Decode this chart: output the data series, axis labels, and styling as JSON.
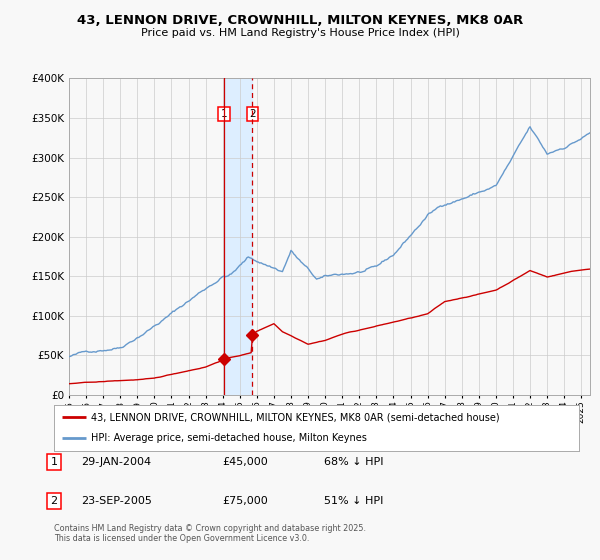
{
  "title1": "43, LENNON DRIVE, CROWNHILL, MILTON KEYNES, MK8 0AR",
  "title2": "Price paid vs. HM Land Registry's House Price Index (HPI)",
  "legend_red": "43, LENNON DRIVE, CROWNHILL, MILTON KEYNES, MK8 0AR (semi-detached house)",
  "legend_blue": "HPI: Average price, semi-detached house, Milton Keynes",
  "sale1_date": "29-JAN-2004",
  "sale1_price": "£45,000",
  "sale1_hpi": "68% ↓ HPI",
  "sale2_date": "23-SEP-2005",
  "sale2_price": "£75,000",
  "sale2_hpi": "51% ↓ HPI",
  "footer": "Contains HM Land Registry data © Crown copyright and database right 2025.\nThis data is licensed under the Open Government Licence v3.0.",
  "sale1_x": 2004.08,
  "sale1_y": 45000,
  "sale2_x": 2005.73,
  "sale2_y": 75000,
  "red_color": "#cc0000",
  "blue_color": "#6699cc",
  "bg_color": "#f8f8f8",
  "grid_color": "#cccccc",
  "vspan_color": "#ddeeff",
  "ylim": [
    0,
    400000
  ],
  "xlim": [
    1995.0,
    2025.5
  ]
}
